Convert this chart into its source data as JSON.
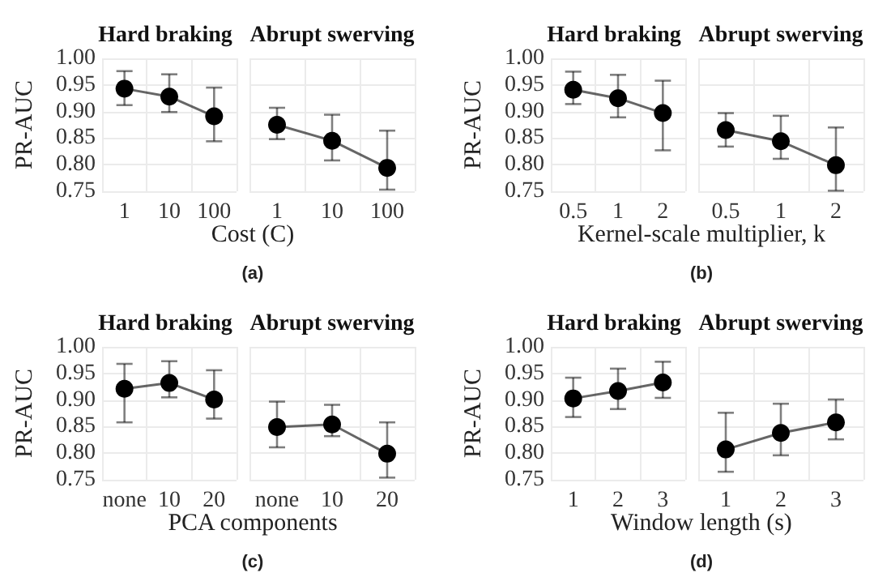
{
  "chart_data": [
    {
      "type": "line",
      "title": "Hard braking",
      "xlabel": "Cost (C)",
      "ylabel": "PR-AUC",
      "annotations": [
        "(a)"
      ],
      "categories": [
        "1",
        "10",
        "100"
      ],
      "series": [
        {
          "color": "#000000",
          "values": [
            0.943,
            0.928,
            0.891
          ],
          "errors": [
            [
              0.912,
              0.976
            ],
            [
              0.899,
              0.97
            ],
            [
              0.844,
              0.945
            ]
          ]
        }
      ],
      "ylim": [
        0.75,
        1.0
      ],
      "yticks": [
        {
          "value": 0.75,
          "label": "0.75"
        },
        {
          "value": 0.8,
          "label": "0.80"
        },
        {
          "value": 0.85,
          "label": "0.85"
        },
        {
          "value": 0.9,
          "label": "0.90"
        },
        {
          "value": 0.95,
          "label": "0.95"
        },
        {
          "value": 1.0,
          "label": "1.00"
        }
      ],
      "grid": true,
      "marker": "circle",
      "line_style": "solid"
    },
    {
      "type": "line",
      "title": "Abrupt swerving",
      "categories": [
        "1",
        "10",
        "100"
      ],
      "series": [
        {
          "color": "#000000",
          "values": [
            0.875,
            0.845,
            0.794
          ],
          "errors": [
            [
              0.848,
              0.907
            ],
            [
              0.808,
              0.894
            ],
            [
              0.753,
              0.864
            ]
          ]
        }
      ],
      "ylim": [
        0.75,
        1.0
      ],
      "yticks": [
        0.75,
        0.8,
        0.85,
        0.9,
        0.95,
        1.0
      ],
      "tick_labels": "x",
      "grid": true,
      "marker": "circle",
      "line_style": "solid"
    },
    {
      "type": "line",
      "title": "Hard braking",
      "xlabel": "Kernel-scale multiplier, k",
      "ylabel": "PR-AUC",
      "annotations": [
        "(b)"
      ],
      "categories": [
        "0.5",
        "1",
        "2"
      ],
      "series": [
        {
          "color": "#000000",
          "values": [
            0.941,
            0.925,
            0.897
          ],
          "errors": [
            [
              0.914,
              0.975
            ],
            [
              0.889,
              0.969
            ],
            [
              0.827,
              0.958
            ]
          ]
        }
      ],
      "ylim": [
        0.75,
        1.0
      ],
      "yticks": [
        {
          "value": 0.75,
          "label": "0.75"
        },
        {
          "value": 0.8,
          "label": "0.80"
        },
        {
          "value": 0.85,
          "label": "0.85"
        },
        {
          "value": 0.9,
          "label": "0.90"
        },
        {
          "value": 0.95,
          "label": "0.95"
        },
        {
          "value": 1.0,
          "label": "1.00"
        }
      ],
      "grid": true,
      "marker": "circle",
      "line_style": "solid"
    },
    {
      "type": "line",
      "title": "Abrupt swerving",
      "categories": [
        "0.5",
        "1",
        "2"
      ],
      "series": [
        {
          "color": "#000000",
          "values": [
            0.865,
            0.844,
            0.799
          ],
          "errors": [
            [
              0.834,
              0.897
            ],
            [
              0.811,
              0.892
            ],
            [
              0.751,
              0.87
            ]
          ]
        }
      ],
      "ylim": [
        0.75,
        1.0
      ],
      "yticks": [
        0.75,
        0.8,
        0.85,
        0.9,
        0.95,
        1.0
      ],
      "tick_labels": "x",
      "grid": true,
      "marker": "circle",
      "line_style": "solid"
    },
    {
      "type": "line",
      "title": "Hard braking",
      "xlabel": "PCA components",
      "ylabel": "PR-AUC",
      "annotations": [
        "(c)"
      ],
      "categories": [
        "none",
        "10",
        "20"
      ],
      "series": [
        {
          "color": "#000000",
          "values": [
            0.921,
            0.932,
            0.901
          ],
          "errors": [
            [
              0.858,
              0.968
            ],
            [
              0.905,
              0.973
            ],
            [
              0.865,
              0.956
            ]
          ]
        }
      ],
      "ylim": [
        0.75,
        1.0
      ],
      "yticks": [
        {
          "value": 0.75,
          "label": "0.75"
        },
        {
          "value": 0.8,
          "label": "0.80"
        },
        {
          "value": 0.85,
          "label": "0.85"
        },
        {
          "value": 0.9,
          "label": "0.90"
        },
        {
          "value": 0.95,
          "label": "0.95"
        },
        {
          "value": 1.0,
          "label": "1.00"
        }
      ],
      "grid": true,
      "marker": "circle",
      "line_style": "solid"
    },
    {
      "type": "line",
      "title": "Abrupt swerving",
      "categories": [
        "none",
        "10",
        "20"
      ],
      "series": [
        {
          "color": "#000000",
          "values": [
            0.849,
            0.854,
            0.799
          ],
          "errors": [
            [
              0.811,
              0.897
            ],
            [
              0.832,
              0.891
            ],
            [
              0.754,
              0.858
            ]
          ]
        }
      ],
      "ylim": [
        0.75,
        1.0
      ],
      "yticks": [
        0.75,
        0.8,
        0.85,
        0.9,
        0.95,
        1.0
      ],
      "tick_labels": "x",
      "grid": true,
      "marker": "circle",
      "line_style": "solid"
    },
    {
      "type": "line",
      "title": "Hard braking",
      "xlabel": "Window length (s)",
      "ylabel": "PR-AUC",
      "annotations": [
        "(d)"
      ],
      "categories": [
        "1",
        "2",
        "3"
      ],
      "series": [
        {
          "color": "#000000",
          "values": [
            0.903,
            0.917,
            0.933
          ],
          "errors": [
            [
              0.868,
              0.942
            ],
            [
              0.883,
              0.959
            ],
            [
              0.904,
              0.972
            ]
          ]
        }
      ],
      "ylim": [
        0.75,
        1.0
      ],
      "yticks": [
        {
          "value": 0.75,
          "label": "0.75"
        },
        {
          "value": 0.8,
          "label": "0.80"
        },
        {
          "value": 0.85,
          "label": "0.85"
        },
        {
          "value": 0.9,
          "label": "0.90"
        },
        {
          "value": 0.95,
          "label": "0.95"
        },
        {
          "value": 1.0,
          "label": "1.00"
        }
      ],
      "grid": true,
      "marker": "circle",
      "line_style": "solid"
    },
    {
      "type": "line",
      "title": "Abrupt swerving",
      "categories": [
        "1",
        "2",
        "3"
      ],
      "series": [
        {
          "color": "#000000",
          "values": [
            0.807,
            0.838,
            0.858
          ],
          "errors": [
            [
              0.765,
              0.876
            ],
            [
              0.796,
              0.893
            ],
            [
              0.826,
              0.901
            ]
          ]
        }
      ],
      "ylim": [
        0.75,
        1.0
      ],
      "yticks": [
        0.75,
        0.8,
        0.85,
        0.9,
        0.95,
        1.0
      ],
      "tick_labels": "x",
      "grid": true,
      "marker": "circle",
      "line_style": "solid"
    }
  ]
}
